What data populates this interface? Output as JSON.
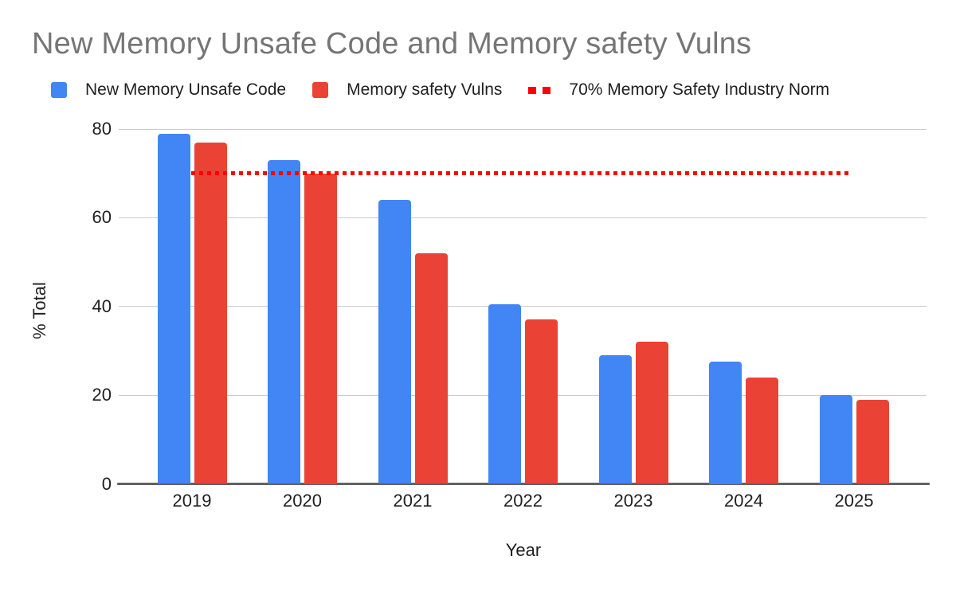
{
  "title": "New Memory Unsafe Code and Memory safety Vulns",
  "legend": {
    "items": [
      {
        "label": "New Memory Unsafe Code",
        "marker": "square-swatch",
        "color": "#4285F4"
      },
      {
        "label": "Memory safety Vulns",
        "marker": "square-swatch",
        "color": "#EA4335"
      },
      {
        "label": "70% Memory Safety Industry Norm",
        "marker": "dotted-line",
        "color": "#FF0000"
      }
    ]
  },
  "chart_data": {
    "type": "bar",
    "title": "New Memory Unsafe Code and Memory safety Vulns",
    "categories": [
      "2019",
      "2020",
      "2021",
      "2022",
      "2023",
      "2024",
      "2025"
    ],
    "series": [
      {
        "name": "New Memory Unsafe Code",
        "color": "#4285F4",
        "values": [
          79,
          73,
          64,
          40.5,
          29,
          27.5,
          20
        ]
      },
      {
        "name": "Memory safety Vulns",
        "color": "#EA4335",
        "values": [
          77,
          70,
          52,
          37,
          32,
          24,
          19
        ]
      }
    ],
    "reference_line": {
      "name": "70% Memory Safety Industry Norm",
      "value": 70,
      "color": "#FF0000",
      "style": "dotted"
    },
    "xlabel": "Year",
    "ylabel": "% Total",
    "ylim": [
      0,
      80
    ],
    "yticks": [
      0,
      20,
      40,
      60,
      80
    ],
    "grid": true,
    "legend_position": "top"
  },
  "colors": {
    "background": "#ffffff",
    "title_text": "#757575",
    "axis_text": "#1f1f1f",
    "gridline": "#cccccc",
    "baseline": "#616161"
  }
}
